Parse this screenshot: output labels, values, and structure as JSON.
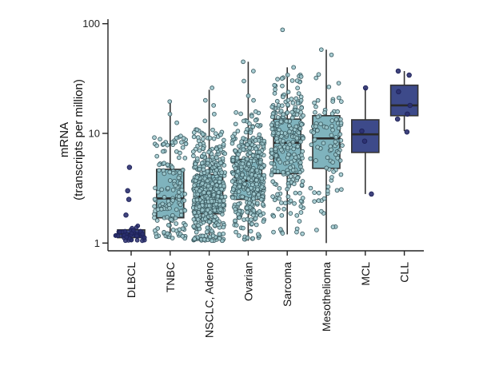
{
  "chart_data": {
    "type": "boxplot",
    "title": "",
    "ylabel_line1": "mRNA",
    "ylabel_line2": "(transcripts per million)",
    "xlabel": "",
    "yscale": "log10",
    "ylim": [
      0.85,
      110
    ],
    "yticks": [
      {
        "value": 1,
        "label": "1"
      },
      {
        "value": 10,
        "label": "10"
      },
      {
        "value": 100,
        "label": "100"
      }
    ],
    "colors": {
      "light_box": "#7fb3bd",
      "light_point": "#9fc9cf",
      "dark_box": "#3d4a8a",
      "dark_point": "#2b3070",
      "line": "#333333"
    },
    "categories": [
      {
        "label": "DLBCL",
        "style": "dark",
        "q1": 1.12,
        "median": 1.22,
        "q3": 1.32,
        "whisker_low": 1.06,
        "whisker_high": 1.34,
        "n": 45,
        "points_range": [
          1.05,
          1.45
        ],
        "outliers": [
          4.9,
          3.0,
          2.5,
          1.8
        ]
      },
      {
        "label": "TNBC",
        "style": "light",
        "q1": 1.7,
        "median": 2.55,
        "q3": 4.7,
        "whisker_low": 1.1,
        "whisker_high": 19.5,
        "n": 140,
        "points_range": [
          1.1,
          9.5
        ],
        "outliers": [
          19.5,
          15.0,
          12.5
        ]
      },
      {
        "label": "NSCLC, Adeno",
        "style": "light",
        "q1": 1.85,
        "median": 2.65,
        "q3": 4.2,
        "whisker_low": 1.05,
        "whisker_high": 25.0,
        "n": 450,
        "points_range": [
          1.05,
          11.0
        ],
        "outliers": [
          26.0,
          20.0,
          18.0,
          15.0,
          13.0
        ]
      },
      {
        "label": "Ovarian",
        "style": "light",
        "q1": 2.5,
        "median": 3.7,
        "q3": 5.8,
        "whisker_low": 1.05,
        "whisker_high": 45.0,
        "n": 380,
        "points_range": [
          1.05,
          16.0
        ],
        "outliers": [
          45.0,
          37.0,
          30.0,
          22.0,
          20.0
        ]
      },
      {
        "label": "Sarcoma",
        "style": "light",
        "q1": 4.3,
        "median": 8.2,
        "q3": 13.5,
        "whisker_low": 1.2,
        "whisker_high": 40.0,
        "n": 260,
        "points_range": [
          1.2,
          38.0
        ],
        "outliers": [
          88.0,
          40.0
        ]
      },
      {
        "label": "Mesothelioma",
        "style": "light",
        "q1": 4.8,
        "median": 9.0,
        "q3": 14.5,
        "whisker_low": 1.0,
        "whisker_high": 58.0,
        "n": 90,
        "points_range": [
          1.3,
          40.0
        ],
        "outliers": [
          58.0,
          52.0
        ]
      },
      {
        "label": "MCL",
        "style": "dark",
        "q1": 6.7,
        "median": 9.8,
        "q3": 13.3,
        "whisker_low": 2.8,
        "whisker_high": 26.0,
        "n": 0,
        "points_range": [
          2.8,
          26.0
        ],
        "outliers": [
          26.0,
          10.5,
          8.5,
          2.8
        ]
      },
      {
        "label": "CLL",
        "style": "dark",
        "q1": 14.5,
        "median": 18.0,
        "q3": 27.5,
        "whisker_low": 10.5,
        "whisker_high": 37.0,
        "n": 0,
        "points_range": [
          10.5,
          37.0
        ],
        "outliers": [
          37.0,
          34.0,
          24.0,
          18.0,
          15.0,
          13.5,
          10.3
        ]
      }
    ]
  }
}
